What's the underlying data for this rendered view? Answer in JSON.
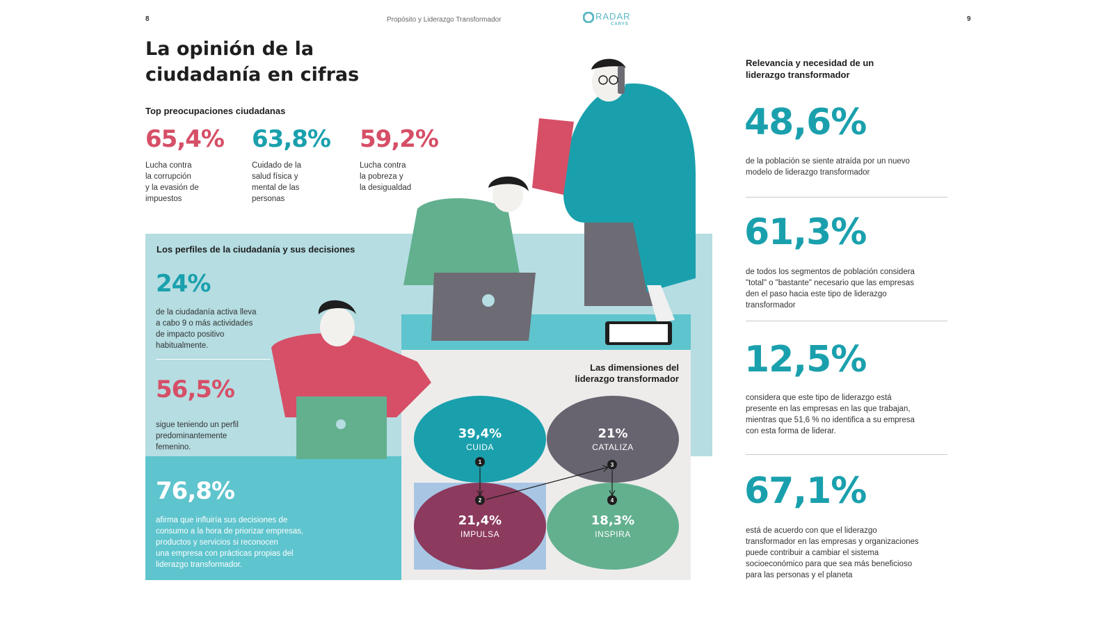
{
  "header": {
    "page_left": "8",
    "running_title": "Propósito y Liderazgo Transformador",
    "logo_name": "RADAR",
    "logo_sub": "CARYS",
    "page_right": "9"
  },
  "title": {
    "line1": "La opinión de la",
    "line2": "ciudadanía en cifras"
  },
  "top": {
    "heading": "Top preocupaciones ciudadanas",
    "items": [
      {
        "value": "65,4%",
        "desc": [
          "Lucha contra",
          "la corrupción",
          "y la evasión de",
          "impuestos"
        ],
        "color": "#d64f67"
      },
      {
        "value": "63,8%",
        "desc": [
          "Cuidado de la",
          "salud física y",
          "mental de las",
          "personas"
        ],
        "color": "#1aa0ad"
      },
      {
        "value": "59,2%",
        "desc": [
          "Lucha contra",
          "la pobreza y",
          "la desigualdad"
        ],
        "color": "#d64f67"
      }
    ]
  },
  "profiles": {
    "heading": "Los perfiles de la ciudadanía y sus decisiones",
    "stat1": {
      "value": "24%",
      "desc": [
        "de la ciudadanía activa lleva",
        "a cabo 9 o más actividades",
        "de impacto positivo",
        "habitualmente."
      ]
    },
    "stat2": {
      "value": "56,5%",
      "desc": [
        "sigue teniendo un perfil",
        "predominantemente",
        "femenino."
      ]
    },
    "stat3": {
      "value": "76,8%",
      "desc": [
        "afirma que influiría sus decisiones de",
        "consumo a la hora de priorizar empresas,",
        "productos y servicios si reconocen",
        "una empresa con prácticas propias del",
        "liderazgo transformador."
      ]
    }
  },
  "dimensions": {
    "heading_l1": "Las dimensiones del",
    "heading_l2": "liderazgo transformador",
    "items": [
      {
        "value": "39,4%",
        "label": "CUIDA",
        "color": "#1aa0ad"
      },
      {
        "value": "21%",
        "label": "CATALIZA",
        "color": "#676470"
      },
      {
        "value": "21,4%",
        "label": "IMPULSA",
        "color": "#8c3a5d"
      },
      {
        "value": "18,3%",
        "label": "INSPIRA",
        "color": "#63b08f"
      }
    ],
    "steps": [
      "1",
      "2",
      "3",
      "4"
    ]
  },
  "right": {
    "heading_l1": "Relevancia y necesidad de un",
    "heading_l2": "liderazgo transformador",
    "stats": [
      {
        "value": "48,6%",
        "desc": [
          "de la población se siente atraída por un nuevo",
          "modelo de liderazgo transformador"
        ]
      },
      {
        "value": "61,3%",
        "desc": [
          "de todos los segmentos de población considera",
          "\"total\" o \"bastante\" necesario que las empresas",
          "den el paso hacia este tipo de liderazgo",
          "transformador"
        ]
      },
      {
        "value": "12,5%",
        "desc": [
          "considera que este tipo de liderazgo está",
          "presente en las empresas en las que trabajan,",
          "mientras que 51,6 % no identifica a su empresa",
          "con esta forma de liderar."
        ]
      },
      {
        "value": "67,1%",
        "desc": [
          "está de acuerdo con que el liderazgo",
          "transformador en las empresas y organizaciones",
          "puede contribuir a cambiar el sistema",
          "socioeconómico para que sea más beneficioso",
          "para las personas y el planeta"
        ]
      }
    ]
  },
  "colors": {
    "pink": "#d64f67",
    "teal": "#1aa0ad",
    "panel_light": "#b5dde2",
    "panel_mid": "#5ec4cd",
    "panel_grey": "#eeeceb"
  }
}
